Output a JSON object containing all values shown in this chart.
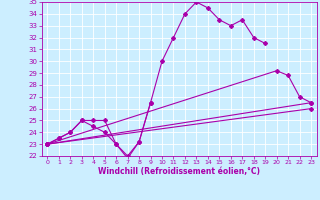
{
  "color": "#aa00aa",
  "bgcolor": "#cceeff",
  "xlabel": "Windchill (Refroidissement éolien,°C)",
  "ylim": [
    22,
    35
  ],
  "xlim": [
    -0.5,
    23.5
  ],
  "yticks": [
    22,
    23,
    24,
    25,
    26,
    27,
    28,
    29,
    30,
    31,
    32,
    33,
    34,
    35
  ],
  "xticks": [
    0,
    1,
    2,
    3,
    4,
    5,
    6,
    7,
    8,
    9,
    10,
    11,
    12,
    13,
    14,
    15,
    16,
    17,
    18,
    19,
    20,
    21,
    22,
    23
  ],
  "line1_x": [
    0,
    1,
    2,
    3,
    4,
    5,
    6,
    7,
    8,
    9
  ],
  "line1_y": [
    23.0,
    23.5,
    24.0,
    25.0,
    25.0,
    25.0,
    23.0,
    21.8,
    23.2,
    26.5
  ],
  "line2_x": [
    0,
    1,
    2,
    3,
    4,
    5,
    6,
    7,
    8,
    9,
    10,
    11,
    12,
    13,
    14,
    15,
    16,
    17,
    18,
    19
  ],
  "line2_y": [
    23.0,
    23.5,
    24.0,
    25.0,
    24.5,
    24.0,
    23.0,
    22.0,
    23.2,
    26.5,
    30.0,
    32.0,
    34.0,
    35.0,
    34.5,
    33.5,
    33.0,
    33.5,
    32.0,
    31.5
  ],
  "line3_x": [
    0,
    20,
    21,
    22,
    23
  ],
  "line3_y": [
    23.0,
    29.2,
    28.8,
    27.0,
    26.5
  ],
  "line4_x": [
    0,
    23
  ],
  "line4_y": [
    23.0,
    26.5
  ],
  "line5_x": [
    0,
    23
  ],
  "line5_y": [
    23.0,
    26.0
  ]
}
